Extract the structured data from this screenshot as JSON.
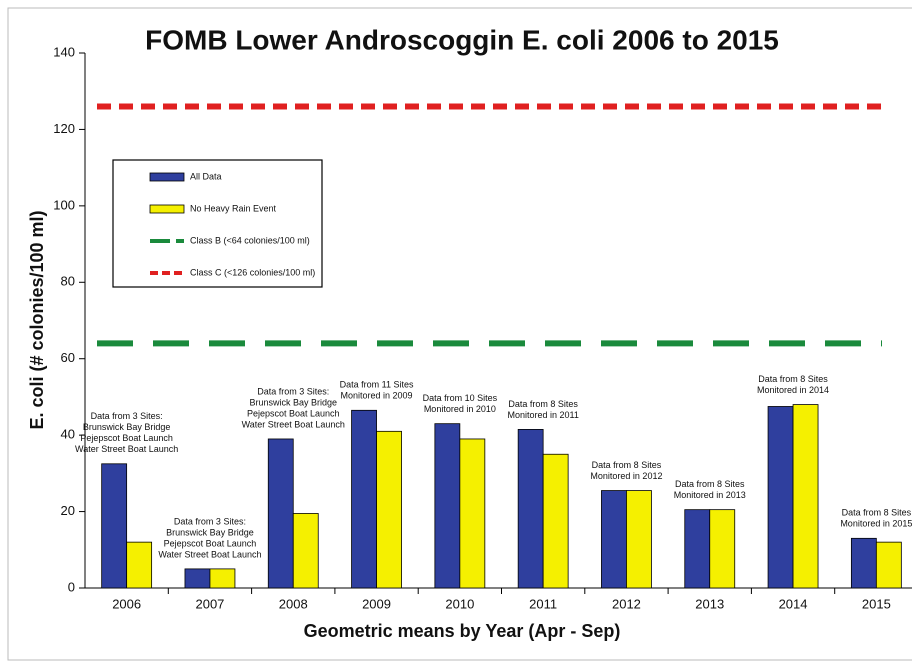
{
  "chart_data": {
    "type": "bar",
    "title": "FOMB Lower Androscoggin E. coli 2006 to 2015",
    "x_label": "Geometric means by Year (Apr - Sep)",
    "y_label": "E. coli (# colonies/100 ml)",
    "categories": [
      "2006",
      "2007",
      "2008",
      "2009",
      "2010",
      "2011",
      "2012",
      "2013",
      "2014",
      "2015"
    ],
    "series": [
      {
        "name": "All Data",
        "color": "#2f3f9e",
        "values": [
          32.5,
          5,
          39,
          46.5,
          43,
          41.5,
          25.5,
          20.5,
          47.5,
          13
        ]
      },
      {
        "name": "No Heavy Rain Event",
        "color": "#f5f000",
        "values": [
          12,
          5,
          19.5,
          41,
          39,
          35,
          25.5,
          20.5,
          48,
          12
        ]
      }
    ],
    "reference_lines": [
      {
        "name": "Class B (<64 colonies/100 ml)",
        "value": 64,
        "color": "#1a8a3c"
      },
      {
        "name": "Class C (<126 colonies/100 ml)",
        "value": 126,
        "color": "#e02020"
      }
    ],
    "annotations": [
      [
        "Data from 3 Sites:",
        "Brunswick Bay Bridge",
        "Pejepscot Boat Launch",
        "Water Street Boat Launch"
      ],
      [
        "Data from 3 Sites:",
        "Brunswick Bay Bridge",
        "Pejepscot Boat Launch",
        "Water Street Boat Launch"
      ],
      [
        "Data from 3 Sites:",
        "Brunswick Bay Bridge",
        "Pejepscot Boat Launch",
        "Water Street Boat Launch"
      ],
      [
        "Data from 11 Sites",
        "Monitored in 2009"
      ],
      [
        "Data from 10 Sites",
        "Monitored in 2010"
      ],
      [
        "Data from 8 Sites",
        "Monitored in 2011"
      ],
      [
        "Data from 8 Sites",
        "Monitored in 2012"
      ],
      [
        "Data from 8 Sites",
        "Monitored in 2013"
      ],
      [
        "Data from 8 Sites",
        "Monitored in 2014"
      ],
      [
        "Data from 8 Sites",
        "Monitored in 2015"
      ]
    ],
    "ylim": [
      0,
      140
    ],
    "yticks": [
      0,
      20,
      40,
      60,
      80,
      100,
      120,
      140
    ],
    "grid": false
  }
}
